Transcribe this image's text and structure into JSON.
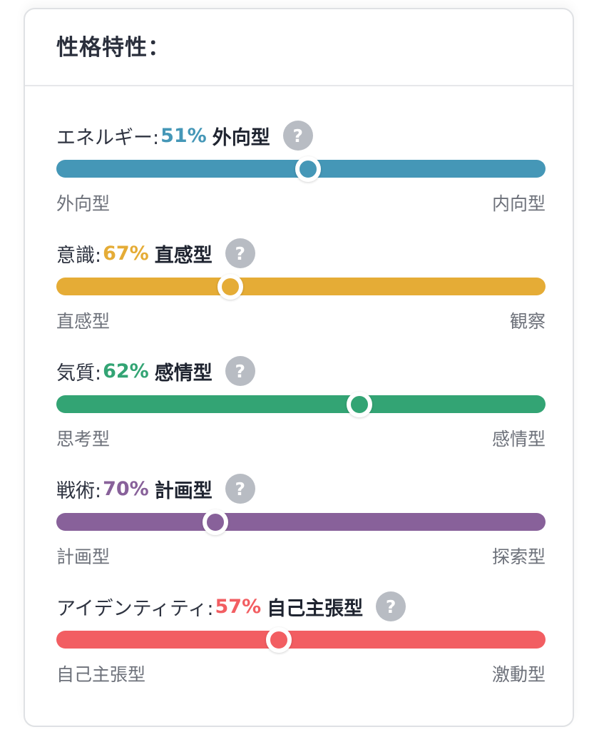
{
  "card": {
    "title": "性格特性："
  },
  "traits": [
    {
      "label": "エネルギー:",
      "percent": "51%",
      "type": "外向型",
      "color": "#4597b7",
      "position": 0.515,
      "left_label": "外向型",
      "right_label": "内向型",
      "help_icon": "?"
    },
    {
      "label": "意識:",
      "percent": "67%",
      "type": "直感型",
      "color": "#e5ac36",
      "position": 0.355,
      "left_label": "直感型",
      "right_label": "観察",
      "help_icon": "?"
    },
    {
      "label": "気質:",
      "percent": "62%",
      "type": "感情型",
      "color": "#33a474",
      "position": 0.62,
      "left_label": "思考型",
      "right_label": "感情型",
      "help_icon": "?"
    },
    {
      "label": "戦術:",
      "percent": "70%",
      "type": "計画型",
      "color": "#88619a",
      "position": 0.325,
      "left_label": "計画型",
      "right_label": "探索型",
      "help_icon": "?"
    },
    {
      "label": "アイデンティティ:",
      "percent": "57%",
      "type": "自己主張型",
      "color": "#f25e62",
      "position": 0.455,
      "left_label": "自己主張型",
      "right_label": "激動型",
      "help_icon": "?"
    }
  ]
}
